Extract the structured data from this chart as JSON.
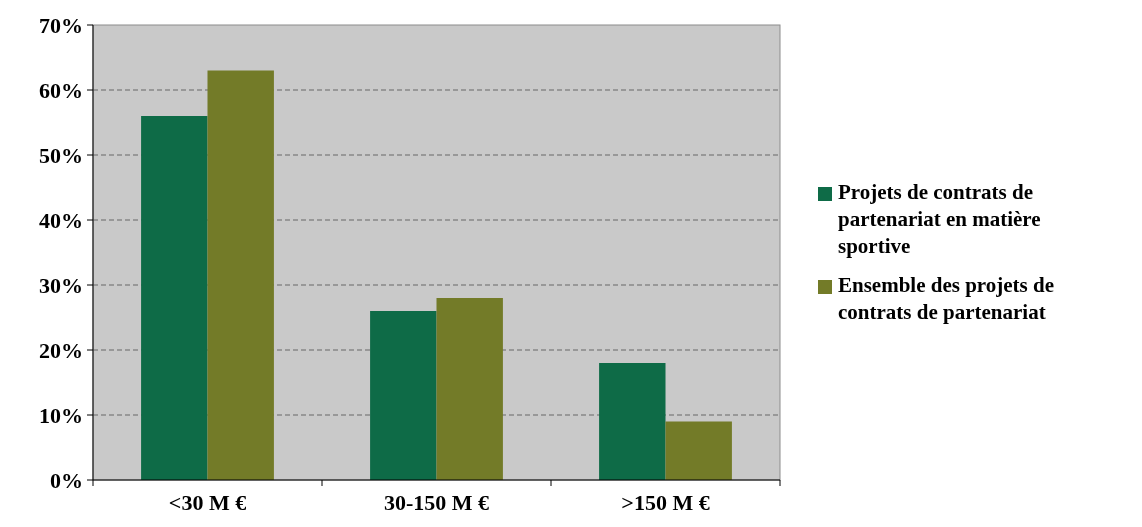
{
  "chart_data": {
    "type": "bar",
    "categories": [
      "<30 M €",
      "30-150 M €",
      ">150 M €"
    ],
    "series": [
      {
        "name": "Projets de contrats de partenariat en matière sportive",
        "color": "#0e6b47",
        "values": [
          56,
          26,
          18
        ]
      },
      {
        "name": "Ensemble des projets de contrats de partenariat",
        "color": "#737b28",
        "values": [
          63,
          28,
          9
        ]
      }
    ],
    "ylim": [
      0,
      70
    ],
    "yticks": [
      {
        "value": 0,
        "label": "0%"
      },
      {
        "value": 10,
        "label": "10%"
      },
      {
        "value": 20,
        "label": "20%"
      },
      {
        "value": 30,
        "label": "30%"
      },
      {
        "value": 40,
        "label": "40%"
      },
      {
        "value": 50,
        "label": "50%"
      },
      {
        "value": 60,
        "label": "60%"
      },
      {
        "value": 70,
        "label": "70%"
      }
    ],
    "grid": "y",
    "legend": "right"
  }
}
